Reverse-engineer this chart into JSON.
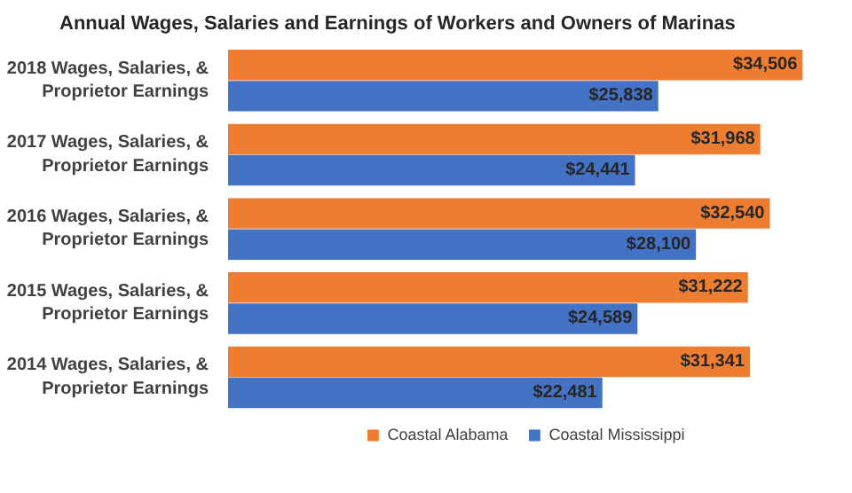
{
  "chart_data": {
    "type": "bar",
    "orientation": "horizontal",
    "title": "Annual Wages, Salaries and Earnings of Workers and Owners of Marinas",
    "categories": [
      "2018 Wages, Salaries, & Proprietor Earnings",
      "2017 Wages, Salaries, & Proprietor Earnings",
      "2016 Wages, Salaries, & Proprietor Earnings",
      "2015 Wages, Salaries, & Proprietor Earnings",
      "2014 Wages, Salaries, & Proprietor Earnings"
    ],
    "series": [
      {
        "name": "Coastal Alabama",
        "color": "#ed7d31",
        "values": [
          34506,
          31968,
          32540,
          31222,
          31341
        ],
        "value_labels": [
          "$34,506",
          "$31,968",
          "$32,540",
          "$31,222",
          "$31,341"
        ]
      },
      {
        "name": "Coastal Mississippi",
        "color": "#4472c4",
        "values": [
          25838,
          24441,
          28100,
          24589,
          22481
        ],
        "value_labels": [
          "$25,838",
          "$24,441",
          "$28,100",
          "$24,589",
          "$22,481"
        ]
      }
    ],
    "tick_labels": "y",
    "legend": "bottom"
  }
}
